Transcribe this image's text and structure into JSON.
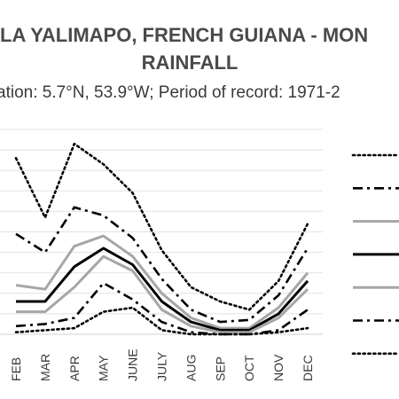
{
  "chart_data": {
    "type": "line",
    "title_line1": "LA YALIMAPO, FRENCH GUIANA - MON",
    "title_line2": "RAINFALL",
    "subtitle": "ation: 5.7°N, 53.9°W; Period of record: 1971-2",
    "categories": [
      "FEB",
      "MAR",
      "APR",
      "MAY",
      "JUNE",
      "JULY",
      "AUG",
      "SEP",
      "OCT",
      "NOV",
      "DEC"
    ],
    "ylim": [
      0,
      10
    ],
    "grid": true,
    "legend_position": "right",
    "series": [
      {
        "style": "dotted",
        "color": "#000000",
        "values": [
          8.6,
          5.7,
          9.3,
          8.3,
          6.9,
          4.1,
          2.3,
          1.6,
          1.2,
          2.6,
          5.4
        ]
      },
      {
        "style": "dashdot",
        "color": "#000000",
        "values": [
          4.9,
          4.0,
          6.2,
          5.8,
          4.7,
          2.7,
          1.2,
          0.6,
          0.7,
          1.9,
          4.2
        ]
      },
      {
        "style": "solid",
        "color": "#a6a6a6",
        "values": [
          2.4,
          2.2,
          4.3,
          4.8,
          3.8,
          2.0,
          0.8,
          0.3,
          0.3,
          1.3,
          3.0
        ]
      },
      {
        "style": "solid",
        "color": "#000000",
        "values": [
          1.6,
          1.6,
          3.3,
          4.2,
          3.4,
          1.6,
          0.6,
          0.2,
          0.2,
          1.0,
          2.6
        ]
      },
      {
        "style": "solid",
        "color": "#a6a6a6",
        "values": [
          1.1,
          1.1,
          2.3,
          3.8,
          3.1,
          1.2,
          0.4,
          0.1,
          0.1,
          0.8,
          2.2
        ]
      },
      {
        "style": "dashdot",
        "color": "#000000",
        "values": [
          0.4,
          0.5,
          0.8,
          2.5,
          1.7,
          0.6,
          0.1,
          0.0,
          0.0,
          0.2,
          1.2
        ]
      },
      {
        "style": "dotted",
        "color": "#000000",
        "values": [
          0.1,
          0.2,
          0.3,
          1.1,
          1.3,
          0.2,
          0.0,
          0.0,
          0.0,
          0.1,
          0.3
        ]
      }
    ]
  }
}
